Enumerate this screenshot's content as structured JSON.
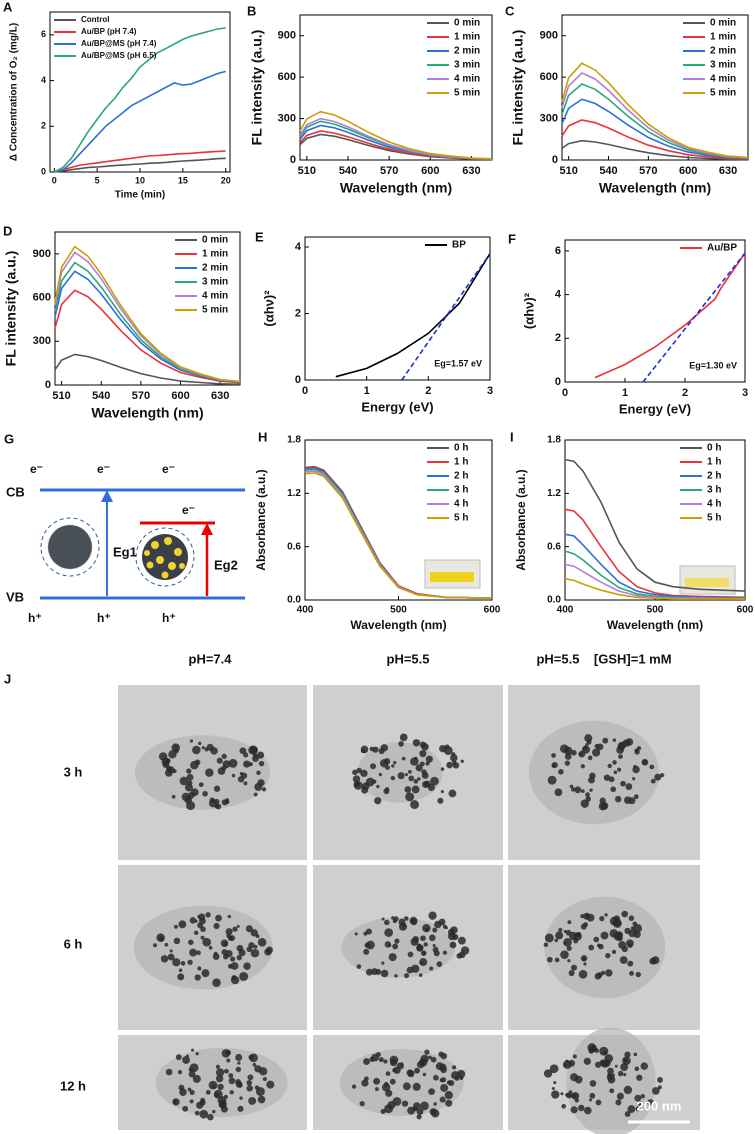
{
  "chart_data": [
    {
      "type": "line",
      "panel": "A",
      "xlabel": "Time (min)",
      "ylabel": "Δ Concentration of O₂ (mg/L)",
      "legend": "upper left",
      "x": [
        0,
        1,
        2,
        3,
        4,
        5,
        6,
        7,
        8,
        9,
        10,
        11,
        12,
        13,
        14,
        15,
        16,
        17,
        18,
        19,
        20
      ],
      "xlim": [
        -0.5,
        20.5
      ],
      "ylim": [
        0,
        7
      ],
      "xticks": [
        0,
        5,
        10,
        15,
        20
      ],
      "yticks": [
        0,
        2,
        4,
        6
      ],
      "series": [
        {
          "name": "Control",
          "color": "#555555",
          "values": [
            0,
            0.05,
            0.1,
            0.15,
            0.2,
            0.22,
            0.25,
            0.28,
            0.3,
            0.33,
            0.35,
            0.38,
            0.4,
            0.42,
            0.45,
            0.48,
            0.5,
            0.52,
            0.55,
            0.58,
            0.6
          ]
        },
        {
          "name": "Au/BP (pH 7.4)",
          "color": "#e8333a",
          "values": [
            0,
            0.1,
            0.2,
            0.3,
            0.35,
            0.4,
            0.45,
            0.5,
            0.55,
            0.6,
            0.65,
            0.7,
            0.72,
            0.75,
            0.78,
            0.8,
            0.82,
            0.85,
            0.88,
            0.9,
            0.92
          ]
        },
        {
          "name": "Au/BP@MS (pH 7.4)",
          "color": "#2f6fd6",
          "values": [
            0,
            0.1,
            0.4,
            0.8,
            1.2,
            1.6,
            2.0,
            2.3,
            2.6,
            2.9,
            3.1,
            3.3,
            3.5,
            3.7,
            3.9,
            3.8,
            3.85,
            4.0,
            4.15,
            4.3,
            4.4
          ]
        },
        {
          "name": "Au/BP@MS (pH 6.5)",
          "color": "#2aa876",
          "values": [
            0,
            0.2,
            0.6,
            1.2,
            1.8,
            2.3,
            2.8,
            3.2,
            3.7,
            4.1,
            4.6,
            4.9,
            5.2,
            5.4,
            5.6,
            5.8,
            5.95,
            6.05,
            6.15,
            6.25,
            6.3
          ]
        }
      ]
    },
    {
      "type": "line",
      "panel": "B",
      "xlabel": "Wavelength (nm)",
      "ylabel": "FL intensity (a.u.)",
      "legend": "upper right",
      "x": [
        505,
        510,
        520,
        530,
        540,
        555,
        570,
        585,
        600,
        615,
        630,
        645
      ],
      "xlim": [
        505,
        645
      ],
      "ylim": [
        0,
        1050
      ],
      "xticks": [
        510,
        540,
        570,
        600,
        630
      ],
      "yticks": [
        0,
        300,
        600,
        900
      ],
      "series": [
        {
          "name": "0 min",
          "color": "#555555",
          "values": [
            111,
            157,
            185,
            172,
            148,
            105,
            68,
            43,
            24,
            15,
            7,
            5
          ]
        },
        {
          "name": "1 min",
          "color": "#e8333a",
          "values": [
            126,
            179,
            210,
            195,
            168,
            120,
            78,
            48,
            27,
            17,
            8,
            5
          ]
        },
        {
          "name": "2 min",
          "color": "#2f6fd6",
          "values": [
            150,
            213,
            250,
            233,
            200,
            143,
            93,
            58,
            33,
            20,
            10,
            6
          ]
        },
        {
          "name": "3 min",
          "color": "#2aa876",
          "values": [
            168,
            238,
            280,
            260,
            224,
            160,
            104,
            64,
            36,
            22,
            11,
            7
          ]
        },
        {
          "name": "4 min",
          "color": "#b57ce0",
          "values": [
            180,
            255,
            300,
            279,
            240,
            171,
            111,
            69,
            39,
            24,
            12,
            8
          ]
        },
        {
          "name": "5 min",
          "color": "#c8a000",
          "values": [
            210,
            298,
            350,
            326,
            280,
            200,
            130,
            81,
            46,
            28,
            14,
            9
          ]
        }
      ]
    },
    {
      "type": "line",
      "panel": "C",
      "xlabel": "Wavelength (nm)",
      "ylabel": "FL intensity (a.u.)",
      "legend": "upper right",
      "x": [
        505,
        510,
        520,
        530,
        540,
        555,
        570,
        585,
        600,
        615,
        630,
        645
      ],
      "xlim": [
        505,
        645
      ],
      "ylim": [
        0,
        1050
      ],
      "xticks": [
        510,
        540,
        570,
        600,
        630
      ],
      "yticks": [
        0,
        300,
        600,
        900
      ],
      "series": [
        {
          "name": "0 min",
          "color": "#555555",
          "values": [
            84,
            119,
            140,
            130,
            112,
            80,
            52,
            32,
            18,
            11,
            6,
            4
          ]
        },
        {
          "name": "1 min",
          "color": "#e8333a",
          "values": [
            174,
            247,
            290,
            270,
            232,
            165,
            107,
            67,
            38,
            23,
            12,
            7
          ]
        },
        {
          "name": "2 min",
          "color": "#2f6fd6",
          "values": [
            264,
            374,
            440,
            409,
            352,
            251,
            163,
            101,
            57,
            35,
            18,
            11
          ]
        },
        {
          "name": "3 min",
          "color": "#2aa876",
          "values": [
            330,
            468,
            550,
            512,
            440,
            314,
            204,
            127,
            72,
            44,
            22,
            14
          ]
        },
        {
          "name": "4 min",
          "color": "#b57ce0",
          "values": [
            378,
            536,
            630,
            586,
            504,
            359,
            233,
            145,
            82,
            50,
            25,
            16
          ]
        },
        {
          "name": "5 min",
          "color": "#c8a000",
          "values": [
            420,
            595,
            700,
            651,
            560,
            399,
            259,
            161,
            91,
            56,
            28,
            18
          ]
        }
      ]
    },
    {
      "type": "line",
      "panel": "D",
      "xlabel": "Wavelength (nm)",
      "ylabel": "FL intensity (a.u.)",
      "legend": "upper right",
      "x": [
        505,
        510,
        520,
        530,
        540,
        555,
        570,
        585,
        600,
        615,
        630,
        645
      ],
      "xlim": [
        505,
        645
      ],
      "ylim": [
        0,
        1050
      ],
      "xticks": [
        510,
        540,
        570,
        600,
        630
      ],
      "yticks": [
        0,
        300,
        600,
        900
      ],
      "series": [
        {
          "name": "0 min",
          "color": "#555555",
          "values": [
            105,
            170,
            210,
            195,
            168,
            120,
            78,
            48,
            27,
            17,
            8,
            5
          ]
        },
        {
          "name": "1 min",
          "color": "#e8333a",
          "values": [
            390,
            553,
            650,
            605,
            520,
            371,
            241,
            150,
            85,
            52,
            26,
            16
          ]
        },
        {
          "name": "2 min",
          "color": "#2f6fd6",
          "values": [
            468,
            663,
            780,
            725,
            624,
            445,
            289,
            179,
            101,
            62,
            31,
            20
          ]
        },
        {
          "name": "3 min",
          "color": "#2aa876",
          "values": [
            504,
            714,
            840,
            781,
            672,
            479,
            311,
            193,
            109,
            67,
            34,
            21
          ]
        },
        {
          "name": "4 min",
          "color": "#b57ce0",
          "values": [
            546,
            774,
            910,
            846,
            728,
            519,
            337,
            209,
            118,
            73,
            36,
            23
          ]
        },
        {
          "name": "5 min",
          "color": "#c8a000",
          "values": [
            570,
            808,
            950,
            884,
            760,
            542,
            352,
            219,
            124,
            76,
            38,
            24
          ]
        }
      ]
    },
    {
      "type": "line",
      "panel": "E",
      "xlabel": "Energy (eV)",
      "ylabel": "(αhν)²",
      "legend": "upper right",
      "annotation": "Eg=1.57 eV",
      "x": [
        0.5,
        1,
        1.5,
        2,
        2.5,
        3
      ],
      "xlim": [
        0,
        3
      ],
      "ylim": [
        0,
        4.3
      ],
      "xticks": [
        0,
        1,
        2,
        3
      ],
      "yticks": [
        0,
        2,
        4
      ],
      "fit": {
        "x": [
          1.57,
          3
        ],
        "y": [
          0,
          3.8
        ]
      },
      "series": [
        {
          "name": "BP",
          "color": "#000000",
          "values": [
            0.1,
            0.35,
            0.8,
            1.4,
            2.3,
            3.8
          ]
        }
      ]
    },
    {
      "type": "line",
      "panel": "F",
      "xlabel": "Energy (eV)",
      "ylabel": "(αhν)²",
      "legend": "upper right",
      "annotation": "Eg=1.30 eV",
      "x": [
        0.5,
        1,
        1.5,
        2,
        2.5,
        2.6,
        3
      ],
      "xlim": [
        0,
        3
      ],
      "ylim": [
        0,
        6.5
      ],
      "xticks": [
        0,
        1,
        2,
        3
      ],
      "yticks": [
        0,
        2,
        4,
        6
      ],
      "fit": {
        "x": [
          1.3,
          3
        ],
        "y": [
          0,
          5.9
        ]
      },
      "series": [
        {
          "name": "Au/BP",
          "color": "#e8333a",
          "values": [
            0.2,
            0.8,
            1.6,
            2.6,
            3.8,
            4.3,
            5.9
          ]
        }
      ]
    },
    {
      "type": "line",
      "panel": "H",
      "xlabel": "Wavelength (nm)",
      "ylabel": "Absorbance (a.u.)",
      "legend": "upper right",
      "x": [
        400,
        410,
        420,
        440,
        460,
        480,
        500,
        520,
        550,
        600
      ],
      "xlim": [
        400,
        600
      ],
      "ylim": [
        0,
        1.8
      ],
      "xticks": [
        400,
        500,
        600
      ],
      "yticks": [
        {
          "value": 0,
          "label": "0.0"
        },
        0.6,
        1.2,
        1.8
      ],
      "series": [
        {
          "name": "0 h",
          "color": "#555555",
          "values": [
            1.49,
            1.5,
            1.46,
            1.22,
            0.82,
            0.42,
            0.16,
            0.07,
            0.03,
            0.02
          ]
        },
        {
          "name": "1 h",
          "color": "#e8333a",
          "values": [
            1.48,
            1.49,
            1.45,
            1.21,
            0.81,
            0.41,
            0.16,
            0.07,
            0.03,
            0.02
          ]
        },
        {
          "name": "2 h",
          "color": "#2f6fd6",
          "values": [
            1.47,
            1.48,
            1.44,
            1.2,
            0.8,
            0.4,
            0.15,
            0.06,
            0.03,
            0.02
          ]
        },
        {
          "name": "3 h",
          "color": "#2aa876",
          "values": [
            1.46,
            1.47,
            1.43,
            1.19,
            0.79,
            0.4,
            0.15,
            0.06,
            0.03,
            0.02
          ]
        },
        {
          "name": "4 h",
          "color": "#b57ce0",
          "values": [
            1.44,
            1.45,
            1.41,
            1.17,
            0.78,
            0.39,
            0.15,
            0.06,
            0.03,
            0.02
          ]
        },
        {
          "name": "5 h",
          "color": "#c8a000",
          "values": [
            1.42,
            1.43,
            1.39,
            1.15,
            0.76,
            0.38,
            0.14,
            0.06,
            0.03,
            0.02
          ]
        }
      ]
    },
    {
      "type": "line",
      "panel": "I",
      "xlabel": "Wavelength (nm)",
      "ylabel": "Absorbance (a.u.)",
      "legend": "upper right",
      "x": [
        400,
        410,
        420,
        440,
        460,
        480,
        500,
        520,
        550,
        600
      ],
      "xlim": [
        400,
        600
      ],
      "ylim": [
        0,
        1.8
      ],
      "xticks": [
        400,
        500,
        600
      ],
      "yticks": [
        {
          "value": 0,
          "label": "0.0"
        },
        0.6,
        1.2,
        1.8
      ],
      "series": [
        {
          "name": "0 h",
          "color": "#555555",
          "values": [
            1.58,
            1.56,
            1.45,
            1.1,
            0.65,
            0.35,
            0.2,
            0.15,
            0.12,
            0.1
          ]
        },
        {
          "name": "1 h",
          "color": "#e8333a",
          "values": [
            1.02,
            1.0,
            0.9,
            0.6,
            0.32,
            0.15,
            0.08,
            0.05,
            0.04,
            0.03
          ]
        },
        {
          "name": "2 h",
          "color": "#2f6fd6",
          "values": [
            0.74,
            0.72,
            0.62,
            0.4,
            0.2,
            0.1,
            0.06,
            0.04,
            0.03,
            0.02
          ]
        },
        {
          "name": "3 h",
          "color": "#2aa876",
          "values": [
            0.55,
            0.52,
            0.45,
            0.28,
            0.14,
            0.07,
            0.04,
            0.03,
            0.02,
            0.02
          ]
        },
        {
          "name": "4 h",
          "color": "#b57ce0",
          "values": [
            0.4,
            0.38,
            0.32,
            0.2,
            0.1,
            0.05,
            0.03,
            0.02,
            0.02,
            0.01
          ]
        },
        {
          "name": "5 h",
          "color": "#c8a000",
          "values": [
            0.24,
            0.22,
            0.18,
            0.11,
            0.06,
            0.03,
            0.02,
            0.01,
            0.01,
            0.01
          ]
        }
      ]
    }
  ],
  "diagram": {
    "panel": "G",
    "cb": "CB",
    "vb": "VB",
    "electrons": [
      "e⁻",
      "e⁻",
      "e⁻",
      "e⁻"
    ],
    "holes": [
      "h⁺",
      "h⁺",
      "h⁺"
    ],
    "gaps": [
      "Eg1",
      "Eg2"
    ]
  },
  "tem": {
    "panel": "J",
    "columns": [
      "pH=7.4",
      "pH=5.5",
      "pH=5.5    [GSH]=1 mM"
    ],
    "rows": [
      "3 h",
      "6 h",
      "12 h"
    ],
    "scale_bar": "200 nm"
  }
}
